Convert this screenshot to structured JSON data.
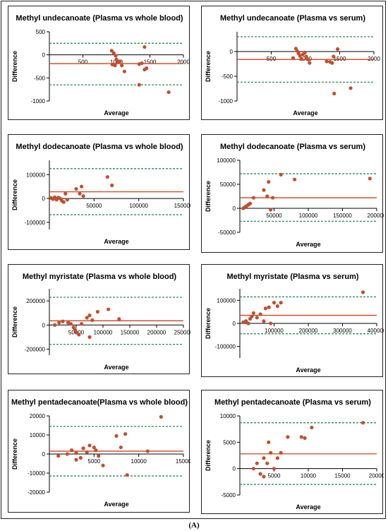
{
  "figure_label": "(A)",
  "colors": {
    "points": "#c0502e",
    "mean_line": "#cc4422",
    "limit_lines": "#2e8b57",
    "axis": "#000000"
  },
  "chart_data": [
    {
      "type": "scatter",
      "title": "Methyl undecanoate (Plasma vs whole blood)",
      "xlabel": "Average",
      "ylabel": "Difference",
      "xlim": [
        0,
        2000
      ],
      "ylim": [
        -1000,
        500
      ],
      "xticks": [
        500,
        1000,
        1500,
        2000
      ],
      "xtick_labels": [
        "500",
        "1000",
        "1500",
        "2000"
      ],
      "yticks": [
        -1000,
        -500,
        0,
        500
      ],
      "ytick_labels": [
        "-1000",
        "-500",
        "0",
        "500"
      ],
      "mean": -190,
      "upper_loa": 250,
      "lower_loa": -650,
      "points": [
        [
          930,
          90
        ],
        [
          960,
          40
        ],
        [
          990,
          -20
        ],
        [
          1000,
          -100
        ],
        [
          1010,
          -160
        ],
        [
          940,
          -210
        ],
        [
          980,
          -230
        ],
        [
          1050,
          -140
        ],
        [
          1080,
          -230
        ],
        [
          1120,
          -360
        ],
        [
          1340,
          -200
        ],
        [
          1380,
          -180
        ],
        [
          1420,
          -320
        ],
        [
          1450,
          -290
        ],
        [
          1420,
          170
        ],
        [
          1340,
          -650
        ],
        [
          1780,
          -810
        ]
      ]
    },
    {
      "type": "scatter",
      "title": "Methyl undecanoate (Plasma vs serum)",
      "xlabel": "Average",
      "ylabel": "Difference",
      "xlim": [
        0,
        2000
      ],
      "ylim": [
        -1000,
        400
      ],
      "xticks": [
        500,
        1000,
        1500,
        2000
      ],
      "xtick_labels": [
        "500",
        "1000",
        "1500",
        "2000"
      ],
      "yticks": [
        -1000,
        -500,
        0
      ],
      "ytick_labels": [
        "-1000",
        "-500",
        "0"
      ],
      "mean": -160,
      "upper_loa": 300,
      "lower_loa": -620,
      "points": [
        [
          860,
          60
        ],
        [
          880,
          10
        ],
        [
          900,
          -40
        ],
        [
          920,
          -90
        ],
        [
          940,
          -150
        ],
        [
          960,
          -60
        ],
        [
          990,
          -20
        ],
        [
          1010,
          -100
        ],
        [
          1040,
          -160
        ],
        [
          1060,
          -230
        ],
        [
          820,
          -130
        ],
        [
          1310,
          -200
        ],
        [
          1360,
          -210
        ],
        [
          1390,
          -230
        ],
        [
          1410,
          -100
        ],
        [
          1470,
          50
        ],
        [
          1420,
          -850
        ],
        [
          1660,
          -740
        ]
      ]
    },
    {
      "type": "scatter",
      "title": "Methyl dodecanoate (Plasma vs whole blood)",
      "xlabel": "Average",
      "ylabel": "Difference",
      "xlim": [
        0,
        150000
      ],
      "ylim": [
        -130000,
        160000
      ],
      "xticks": [
        50000,
        100000,
        150000
      ],
      "xtick_labels": [
        "50000",
        "100000",
        "150000"
      ],
      "yticks": [
        -100000,
        0,
        100000
      ],
      "ytick_labels": [
        "-100000",
        "0",
        "100000"
      ],
      "mean": 28000,
      "upper_loa": 125000,
      "lower_loa": -68000,
      "points": [
        [
          2000,
          2000
        ],
        [
          4000,
          -3000
        ],
        [
          6000,
          5000
        ],
        [
          8000,
          -5000
        ],
        [
          10000,
          4000
        ],
        [
          12000,
          0
        ],
        [
          14000,
          -10000
        ],
        [
          16000,
          -15000
        ],
        [
          18000,
          20000
        ],
        [
          20000,
          -5000
        ],
        [
          30000,
          40000
        ],
        [
          34000,
          20000
        ],
        [
          36000,
          50000
        ],
        [
          38000,
          10000
        ],
        [
          65000,
          90000
        ],
        [
          70000,
          55000
        ]
      ]
    },
    {
      "type": "scatter",
      "title": "Methyl dodecanoate (Plasma vs serum)",
      "xlabel": "Average",
      "ylabel": "Difference",
      "xlim": [
        0,
        200000
      ],
      "ylim": [
        -50000,
        100000
      ],
      "xticks": [
        50000,
        100000,
        150000,
        200000
      ],
      "xtick_labels": [
        "50000",
        "100000",
        "150000",
        "200000"
      ],
      "yticks": [
        -50000,
        0,
        50000,
        100000
      ],
      "ytick_labels": [
        "-50000",
        "0",
        "50000",
        "100000"
      ],
      "mean": 22000,
      "upper_loa": 72000,
      "lower_loa": -27000,
      "points": [
        [
          5000,
          0
        ],
        [
          7000,
          2000
        ],
        [
          9000,
          4000
        ],
        [
          11000,
          6000
        ],
        [
          13000,
          8000
        ],
        [
          15000,
          10000
        ],
        [
          20000,
          22000
        ],
        [
          35000,
          38000
        ],
        [
          40000,
          25000
        ],
        [
          42000,
          55000
        ],
        [
          48000,
          22000
        ],
        [
          60000,
          70000
        ],
        [
          80000,
          60000
        ],
        [
          190000,
          62000
        ],
        [
          45000,
          -3000
        ]
      ]
    },
    {
      "type": "scatter",
      "title": "Methyl myristate (Plasma vs whole blood)",
      "xlabel": "Average",
      "ylabel": "Difference",
      "xlim": [
        0,
        250000
      ],
      "ylim": [
        -250000,
        300000
      ],
      "xticks": [
        50000,
        100000,
        150000,
        200000,
        250000
      ],
      "xtick_labels": [
        "50000",
        "100000",
        "150000",
        "200000",
        "250000"
      ],
      "yticks": [
        -200000,
        0,
        200000
      ],
      "ytick_labels": [
        "-200000",
        "0",
        "200000"
      ],
      "mean": 35000,
      "upper_loa": 230000,
      "lower_loa": -160000,
      "points": [
        [
          10000,
          0
        ],
        [
          18000,
          20000
        ],
        [
          25000,
          30000
        ],
        [
          35000,
          20000
        ],
        [
          40000,
          10000
        ],
        [
          45000,
          -20000
        ],
        [
          48000,
          -40000
        ],
        [
          50000,
          -60000
        ],
        [
          55000,
          -80000
        ],
        [
          60000,
          10000
        ],
        [
          70000,
          60000
        ],
        [
          75000,
          80000
        ],
        [
          80000,
          40000
        ],
        [
          90000,
          110000
        ],
        [
          110000,
          130000
        ],
        [
          130000,
          50000
        ],
        [
          75000,
          -100000
        ]
      ]
    },
    {
      "type": "scatter",
      "title": "Methyl myristate (Plasma vs serum)",
      "xlabel": "Average",
      "ylabel": "Difference",
      "xlim": [
        0,
        400000
      ],
      "ylim": [
        -150000,
        150000
      ],
      "xticks": [
        100000,
        200000,
        300000,
        400000
      ],
      "xtick_labels": [
        "100000",
        "200000",
        "300000",
        "400000"
      ],
      "yticks": [
        -100000,
        0,
        100000
      ],
      "ytick_labels": [
        "-100000",
        "0",
        "100000"
      ],
      "mean": 35000,
      "upper_loa": 115000,
      "lower_loa": -45000,
      "points": [
        [
          10000,
          5000
        ],
        [
          18000,
          10000
        ],
        [
          25000,
          0
        ],
        [
          30000,
          20000
        ],
        [
          35000,
          30000
        ],
        [
          40000,
          45000
        ],
        [
          50000,
          25000
        ],
        [
          60000,
          40000
        ],
        [
          70000,
          10000
        ],
        [
          75000,
          65000
        ],
        [
          85000,
          70000
        ],
        [
          100000,
          90000
        ],
        [
          110000,
          75000
        ],
        [
          120000,
          90000
        ],
        [
          90000,
          0
        ],
        [
          360000,
          135000
        ]
      ]
    },
    {
      "type": "scatter",
      "title": "Methyl pentadecanoate(Plasma vs whole blood)",
      "xlabel": "Average",
      "ylabel": "Difference",
      "xlim": [
        0,
        15000
      ],
      "ylim": [
        -20000,
        20000
      ],
      "xticks": [
        5000,
        10000,
        15000
      ],
      "xtick_labels": [
        "5000",
        "10000",
        "15000"
      ],
      "yticks": [
        -20000,
        -10000,
        0,
        10000,
        20000
      ],
      "ytick_labels": [
        "-20000",
        "-10000",
        "0",
        "10000",
        "20000"
      ],
      "mean": 1500,
      "upper_loa": 14500,
      "lower_loa": -11500,
      "points": [
        [
          1000,
          -1000
        ],
        [
          2000,
          0
        ],
        [
          2500,
          2000
        ],
        [
          3000,
          500
        ],
        [
          3500,
          -2000
        ],
        [
          3800,
          3000
        ],
        [
          4200,
          1000
        ],
        [
          4500,
          4500
        ],
        [
          5000,
          3500
        ],
        [
          5200,
          2000
        ],
        [
          5500,
          -1000
        ],
        [
          6000,
          -6000
        ],
        [
          7500,
          9500
        ],
        [
          8000,
          3500
        ],
        [
          8500,
          10500
        ],
        [
          11000,
          1500
        ],
        [
          12500,
          19500
        ],
        [
          3000,
          -3000
        ],
        [
          8700,
          -11000
        ]
      ]
    },
    {
      "type": "scatter",
      "title": "Methyl pentadecanoate (Plasma vs serum)",
      "xlabel": "Average",
      "ylabel": "Difference",
      "xlim": [
        0,
        20000
      ],
      "ylim": [
        -5000,
        10000
      ],
      "xticks": [
        5000,
        10000,
        15000,
        20000
      ],
      "xtick_labels": [
        "5000",
        "10000",
        "15000",
        "20000"
      ],
      "yticks": [
        -5000,
        0,
        5000,
        10000
      ],
      "ytick_labels": [
        "-5000",
        "0",
        "5000",
        "10000"
      ],
      "mean": 2800,
      "upper_loa": 8700,
      "lower_loa": -3000,
      "points": [
        [
          2000,
          0
        ],
        [
          2500,
          1000
        ],
        [
          3000,
          -1000
        ],
        [
          3500,
          2000
        ],
        [
          4000,
          1000
        ],
        [
          4200,
          5000
        ],
        [
          4500,
          3000
        ],
        [
          5000,
          0
        ],
        [
          5500,
          2000
        ],
        [
          6000,
          3000
        ],
        [
          7000,
          6000
        ],
        [
          9000,
          6000
        ],
        [
          9500,
          5800
        ],
        [
          10500,
          7800
        ],
        [
          18000,
          8700
        ],
        [
          3500,
          -1500
        ]
      ]
    }
  ]
}
